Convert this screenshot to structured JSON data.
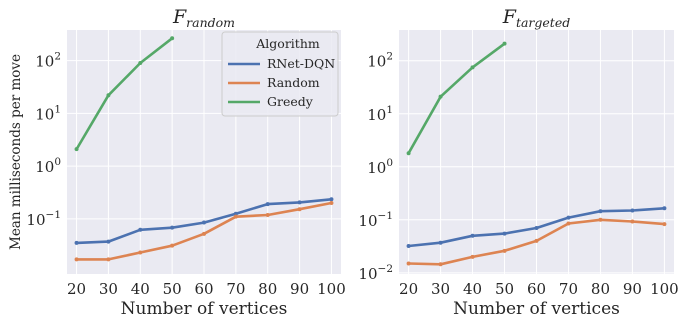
{
  "chart_data": [
    {
      "type": "line",
      "title_script": "F",
      "title_subscript": "random",
      "xlabel": "Number of vertices",
      "ylabel": "Mean milliseconds per move",
      "yscale": "log",
      "ylim": [
        0.009,
        380
      ],
      "xlim": [
        17,
        103
      ],
      "x": [
        20,
        30,
        40,
        50,
        60,
        70,
        80,
        90,
        100
      ],
      "x_ticks": [
        "20",
        "30",
        "40",
        "50",
        "60",
        "70",
        "80",
        "90",
        "100"
      ],
      "y_ticks": [
        {
          "value": 0.1,
          "base": "10",
          "exp": "−1"
        },
        {
          "value": 1,
          "base": "10",
          "exp": "0"
        },
        {
          "value": 10,
          "base": "10",
          "exp": "1"
        },
        {
          "value": 100,
          "base": "10",
          "exp": "2"
        }
      ],
      "grid": true,
      "legend": {
        "title": "Algorithm",
        "placement": "top-right",
        "entries": [
          "RNet-DQN",
          "Random",
          "Greedy"
        ]
      },
      "series": [
        {
          "name": "RNet-DQN",
          "color": "#4c72b0",
          "values": [
            0.035,
            0.037,
            0.062,
            0.068,
            0.085,
            0.125,
            0.19,
            0.205,
            0.235
          ]
        },
        {
          "name": "Random",
          "color": "#dd8452",
          "values": [
            0.017,
            0.017,
            0.023,
            0.031,
            0.052,
            0.11,
            0.118,
            0.152,
            0.2
          ]
        },
        {
          "name": "Greedy",
          "color": "#55a868",
          "values": [
            2.1,
            22,
            90,
            265,
            null,
            null,
            null,
            null,
            null
          ]
        }
      ]
    },
    {
      "type": "line",
      "title_script": "F",
      "title_subscript": "targeted",
      "xlabel": "Number of vertices",
      "ylabel": "",
      "yscale": "log",
      "ylim": [
        0.0095,
        380
      ],
      "xlim": [
        17,
        103
      ],
      "x": [
        20,
        30,
        40,
        50,
        60,
        70,
        80,
        90,
        100
      ],
      "x_ticks": [
        "20",
        "30",
        "40",
        "50",
        "60",
        "70",
        "80",
        "90",
        "100"
      ],
      "y_ticks": [
        {
          "value": 0.01,
          "base": "10",
          "exp": "−2"
        },
        {
          "value": 0.1,
          "base": "10",
          "exp": "−1"
        },
        {
          "value": 1,
          "base": "10",
          "exp": "0"
        },
        {
          "value": 10,
          "base": "10",
          "exp": "1"
        },
        {
          "value": 100,
          "base": "10",
          "exp": "2"
        }
      ],
      "grid": true,
      "legend": null,
      "series": [
        {
          "name": "RNet-DQN",
          "color": "#4c72b0",
          "values": [
            0.032,
            0.037,
            0.05,
            0.055,
            0.07,
            0.11,
            0.145,
            0.15,
            0.165
          ]
        },
        {
          "name": "Random",
          "color": "#dd8452",
          "values": [
            0.015,
            0.0145,
            0.02,
            0.026,
            0.04,
            0.085,
            0.1,
            0.093,
            0.083
          ]
        },
        {
          "name": "Greedy",
          "color": "#55a868",
          "values": [
            1.8,
            21,
            75,
            210,
            null,
            null,
            null,
            null,
            null
          ]
        }
      ]
    }
  ]
}
